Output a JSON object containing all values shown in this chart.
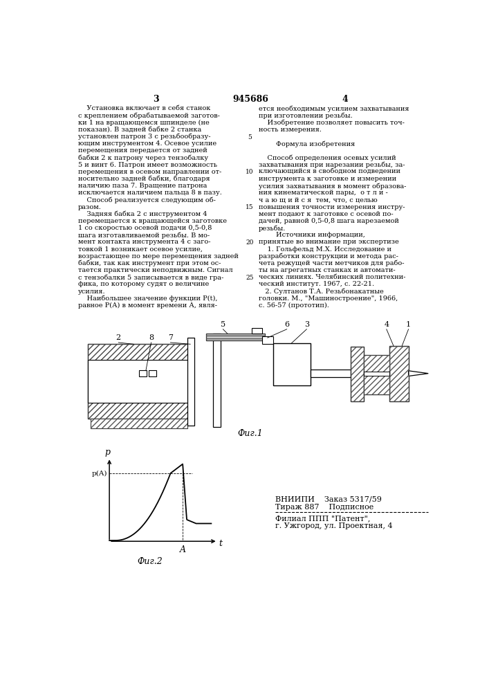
{
  "page_number_left": "3",
  "page_number_center": "945686",
  "page_number_right": "4",
  "bg_color": "#ffffff",
  "text_color": "#000000",
  "left_column_text": [
    "    Установка включает в себя станок",
    "с креплением обрабатываемой заготов-",
    "ки 1 на вращающемся шпинделе (не",
    "показан). В задней бабке 2 станка",
    "установлен патрон 3 с резьбообразу-",
    "ющим инструментом 4. Осевое усилие",
    "перемещения передается от задней",
    "бабки 2 к патрону через тензобалку",
    "5 и винт 6. Патрон имеет возможность",
    "перемещения в осевом направлении от-",
    "носительно задней бабки, благодаря",
    "наличию паза 7. Вращение патрона",
    "исключается наличием пальца 8 в пазу.",
    "    Способ реализуется следующим об-",
    "разом.",
    "    Задняя бабка 2 с инструментом 4",
    "перемещается к вращающейся заготовке",
    "1 со скоростью осевой подачи 0,5-0,8",
    "шага изготавливаемой резьбы. В мо-",
    "мент контакта инструмента 4 с заго-",
    "товкой 1 возникает осевое усилие,",
    "возрастающее по мере перемещения задней",
    "бабки, так как инструмент при этом ос-",
    "тается практически неподвижным. Сигнал",
    "с тензобалки 5 записывается в виде гра-",
    "фика, по которому судят о величине",
    "усилия.",
    "    Наибольшее значение функции Р(t),",
    "равное Р(А) в момент времени А, явля-"
  ],
  "right_column_text": [
    "ется необходимым усилием захватывания",
    "при изготовлении резьбы.",
    "    Изобретение позволяет повысить точ-",
    "ность измерения.",
    "",
    "        Формула изобретения",
    "",
    "    Способ определения осевых усилий",
    "захватывания при нарезании резьбы, за-",
    "ключающийся в свободном подведении",
    "инструмента к заготовке и измерении",
    "усилия захватывания в момент образова-",
    "ния кинематической пары,  о т л и -",
    "ч а ю щ и й с я  тем, что, с целью",
    "повышения точности измерения инстру-",
    "мент подают к заготовке с осевой по-",
    "дачей, равной 0,5-0,8 шага нарезаемой",
    "резьбы.",
    "        Источники информации,",
    "принятые во внимание при экспертизе",
    "    1. Гольфельд М.Х. Исследование и",
    "разработки конструкции и метода рас-",
    "чета режущей части метчиков для рабо-",
    "ты на агрегатных станках и автомати-",
    "ческих линиях. Челябинский политехни-",
    "ческий институт. 1967, с. 22-21.",
    "   2. Султанов Т.А. Резьбонакатные",
    "головки. М., \"Машиностроение\", 1966,",
    "с. 56-57 (прототип)."
  ],
  "fig1_label": "Фиг.1",
  "fig2_label": "Фиг.2",
  "bottom_info": [
    "ВНИИПИ    Заказ 5317/59",
    "Тираж 887    Подписное",
    "Филиал ППП \"Патент\",",
    "г. Ужгород, ул. Проектная, 4"
  ]
}
